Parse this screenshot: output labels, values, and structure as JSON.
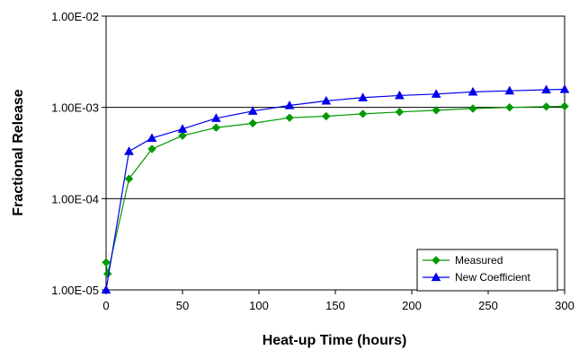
{
  "chart_data": {
    "type": "line",
    "title": "",
    "xlabel": "Heat-up Time (hours)",
    "ylabel": "Fractional Release",
    "xlim": [
      0,
      300
    ],
    "ylim": [
      1e-05,
      0.01
    ],
    "yscale": "log",
    "x_ticks": [
      0,
      50,
      100,
      150,
      200,
      250,
      300
    ],
    "y_ticks": [
      {
        "value": 1e-05,
        "label": "1.00E-05"
      },
      {
        "value": 0.0001,
        "label": "1.00E-04"
      },
      {
        "value": 0.001,
        "label": "1.00E-03"
      },
      {
        "value": 0.01,
        "label": "1.00E-02"
      }
    ],
    "grid": "horizontal",
    "legend_position": "bottom-right",
    "series": [
      {
        "name": "Measured",
        "color": "#009900",
        "marker": "diamond",
        "x": [
          0,
          1,
          15,
          30,
          50,
          72,
          96,
          120,
          144,
          168,
          192,
          216,
          240,
          264,
          288,
          300
        ],
        "y": [
          2e-05,
          1.5e-05,
          0.000165,
          0.00035,
          0.00049,
          0.0006,
          0.00067,
          0.00077,
          0.0008,
          0.00085,
          0.00089,
          0.00093,
          0.00097,
          0.001,
          0.00102,
          0.00103
        ]
      },
      {
        "name": "New Coefficient",
        "color": "#0000ee",
        "marker": "triangle",
        "x": [
          0,
          15,
          30,
          50,
          72,
          96,
          120,
          144,
          168,
          192,
          216,
          240,
          264,
          288,
          300
        ],
        "y": [
          1e-05,
          0.00033,
          0.00046,
          0.00058,
          0.00076,
          0.00091,
          0.00105,
          0.00118,
          0.00128,
          0.00135,
          0.0014,
          0.00148,
          0.00152,
          0.00156,
          0.00158
        ]
      }
    ]
  }
}
